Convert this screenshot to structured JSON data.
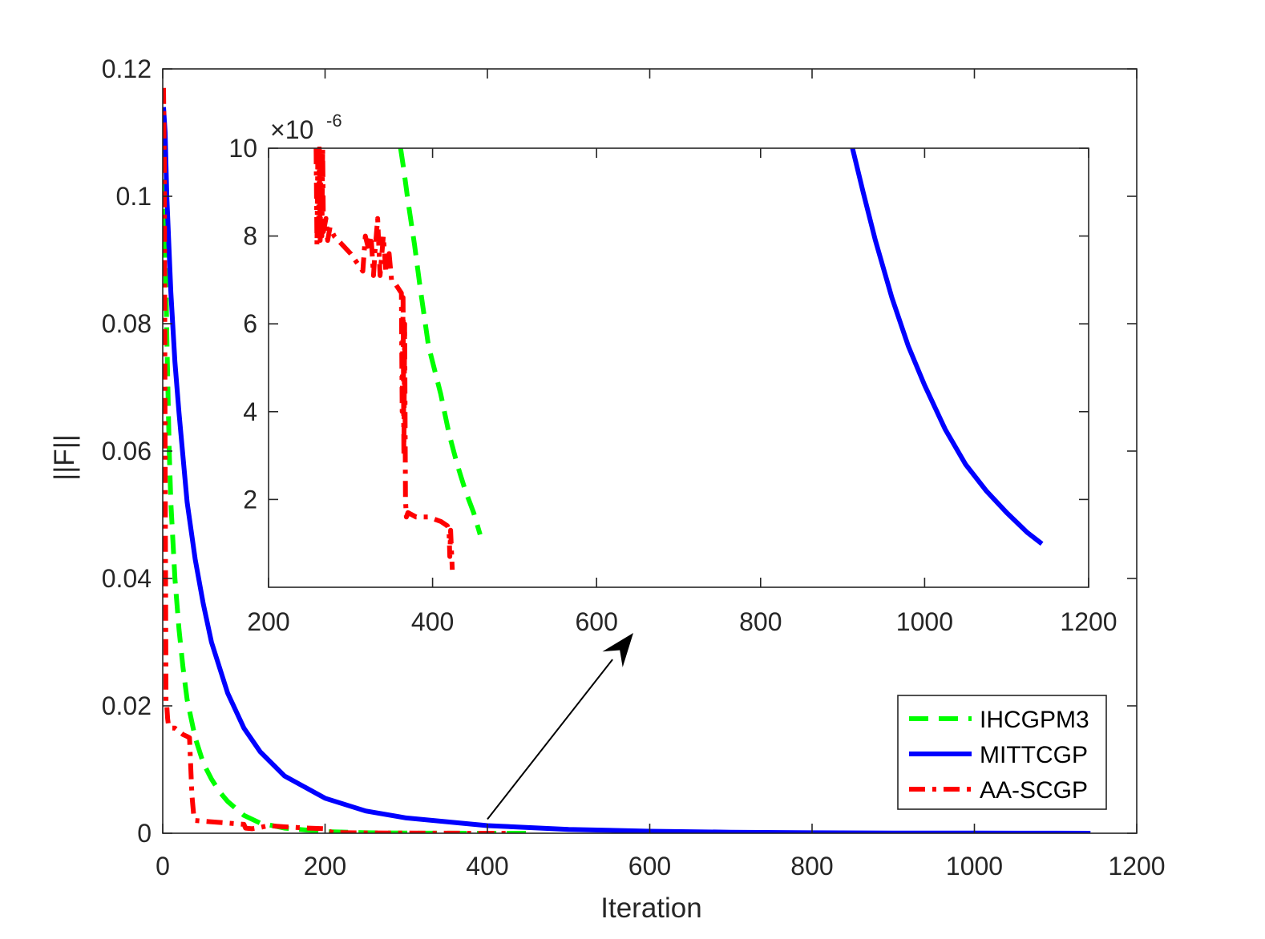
{
  "chart_data": [
    {
      "id": "main",
      "type": "line",
      "title": "",
      "xlabel": "Iteration",
      "ylabel": "||F||",
      "xlim": [
        0,
        1200
      ],
      "ylim": [
        0,
        0.12
      ],
      "xticks": [
        0,
        200,
        400,
        600,
        800,
        1000,
        1200
      ],
      "xtick_labels": [
        "0",
        "200",
        "400",
        "600",
        "800",
        "1000",
        "1200"
      ],
      "yticks": [
        0,
        0.02,
        0.04,
        0.06,
        0.08,
        0.1,
        0.12
      ],
      "ytick_labels": [
        "0",
        "0.02",
        "0.04",
        "0.06",
        "0.08",
        "0.1",
        "0.12"
      ],
      "grid": false,
      "legend_position": "bottom-right",
      "series": [
        {
          "name": "IHCGPM3",
          "color": "#00ff00",
          "style": "dashed",
          "x": [
            1,
            2,
            3,
            5,
            8,
            10,
            15,
            20,
            25,
            30,
            40,
            50,
            60,
            70,
            80,
            100,
            120,
            150,
            200,
            250,
            300,
            350,
            400,
            430,
            458
          ],
          "y": [
            0.112,
            0.1,
            0.095,
            0.078,
            0.06,
            0.052,
            0.04,
            0.032,
            0.026,
            0.021,
            0.015,
            0.011,
            0.0085,
            0.0065,
            0.005,
            0.0028,
            0.0016,
            0.0008,
            0.00025,
            8e-05,
            3e-05,
            1e-05,
            5e-06,
            2.5e-06,
            1.2e-06
          ]
        },
        {
          "name": "MITTCGP",
          "color": "#0000ff",
          "style": "solid",
          "x": [
            1,
            3,
            5,
            10,
            15,
            20,
            30,
            40,
            50,
            60,
            80,
            100,
            120,
            150,
            200,
            250,
            300,
            400,
            500,
            600,
            700,
            800,
            900,
            1000,
            1100,
            1143
          ],
          "y": [
            0.114,
            0.11,
            0.1,
            0.085,
            0.074,
            0.066,
            0.052,
            0.043,
            0.036,
            0.03,
            0.022,
            0.0165,
            0.0128,
            0.009,
            0.0055,
            0.0035,
            0.0024,
            0.0012,
            0.0006,
            0.00031,
            0.00016,
            8e-05,
            4e-05,
            2e-05,
            8e-06,
            1e-06
          ]
        },
        {
          "name": "AA-SCGP",
          "color": "#ff0000",
          "style": "dashdot",
          "x": [
            1,
            2,
            3,
            4,
            5,
            6,
            7,
            8,
            10,
            15,
            20,
            25,
            30,
            33,
            34,
            36,
            38,
            40,
            50,
            60,
            80,
            100,
            102,
            110,
            120,
            130,
            140,
            150,
            180,
            200,
            205,
            210,
            250,
            300,
            350,
            400,
            424
          ],
          "y": [
            0.117,
            0.105,
            0.06,
            0.02,
            0.02,
            0.018,
            0.017,
            0.0168,
            0.0165,
            0.0165,
            0.016,
            0.0155,
            0.0152,
            0.015,
            0.012,
            0.006,
            0.003,
            0.002,
            0.0019,
            0.0018,
            0.0016,
            0.0014,
            0.0008,
            0.0007,
            0.0009,
            0.0012,
            0.0011,
            0.001,
            0.0008,
            0.0007,
            0.0003,
            0.0001,
            5e-05,
            2e-05,
            1e-05,
            3e-06,
            4e-07
          ]
        }
      ],
      "annotations": [
        {
          "type": "arrow",
          "from": [
            400,
            0.0022
          ],
          "to": "inset"
        }
      ]
    },
    {
      "id": "inset",
      "type": "line",
      "title": "",
      "xlabel": "",
      "ylabel": "",
      "xlim": [
        200,
        1200
      ],
      "ylim": [
        0,
        10
      ],
      "y_multiplier": "×10",
      "y_multiplier_exponent": "-6",
      "xticks": [
        200,
        400,
        600,
        800,
        1000,
        1200
      ],
      "xtick_labels": [
        "200",
        "400",
        "600",
        "800",
        "1000",
        "1200"
      ],
      "yticks": [
        2,
        4,
        6,
        8,
        10
      ],
      "ytick_labels": [
        "2",
        "4",
        "6",
        "8",
        "10"
      ],
      "grid": false,
      "series": [
        {
          "name": "IHCGPM3",
          "color": "#00ff00",
          "style": "dashed",
          "x": [
            361,
            365,
            370,
            378,
            385,
            395,
            410,
            420,
            430,
            440,
            450,
            458
          ],
          "y": [
            10,
            9.5,
            8.8,
            7.8,
            6.8,
            5.5,
            4.4,
            3.5,
            2.8,
            2.2,
            1.7,
            1.2
          ]
        },
        {
          "name": "MITTCGP",
          "color": "#0000ff",
          "style": "solid",
          "x": [
            912,
            925,
            940,
            960,
            980,
            1000,
            1025,
            1050,
            1075,
            1100,
            1125,
            1143
          ],
          "y": [
            10,
            9.0,
            7.9,
            6.6,
            5.5,
            4.6,
            3.6,
            2.8,
            2.2,
            1.7,
            1.25,
            0.99
          ]
        },
        {
          "name": "AA-SCGP",
          "color": "#ff0000",
          "style": "dashdot",
          "x": [
            258,
            259,
            260,
            261,
            262,
            263,
            264,
            265,
            266,
            267,
            270,
            272,
            275,
            280,
            300,
            315,
            318,
            322,
            325,
            328,
            330,
            333,
            336,
            340,
            343,
            347,
            350,
            355,
            362,
            363,
            364,
            365,
            366,
            367,
            368,
            370,
            380,
            395,
            410,
            418,
            420,
            421,
            422,
            424
          ],
          "y": [
            10,
            7.8,
            9.7,
            8.2,
            10,
            7.9,
            9.9,
            8.0,
            10,
            8.1,
            8.4,
            7.9,
            8.2,
            8.0,
            7.6,
            7.2,
            8.0,
            7.7,
            8.0,
            7.1,
            7.7,
            8.4,
            7.1,
            8.0,
            7.2,
            7.6,
            7.0,
            6.9,
            6.7,
            4.0,
            6.6,
            3.0,
            6.0,
            2.0,
            1.6,
            1.7,
            1.6,
            1.6,
            1.5,
            1.4,
            1.3,
            0.7,
            1.3,
            0.4
          ]
        }
      ]
    }
  ],
  "legend": {
    "items": [
      {
        "label": "IHCGPM3",
        "color": "#00ff00",
        "style": "dashed"
      },
      {
        "label": "MITTCGP",
        "color": "#0000ff",
        "style": "solid"
      },
      {
        "label": "AA-SCGP",
        "color": "#ff0000",
        "style": "dashdot"
      }
    ]
  }
}
